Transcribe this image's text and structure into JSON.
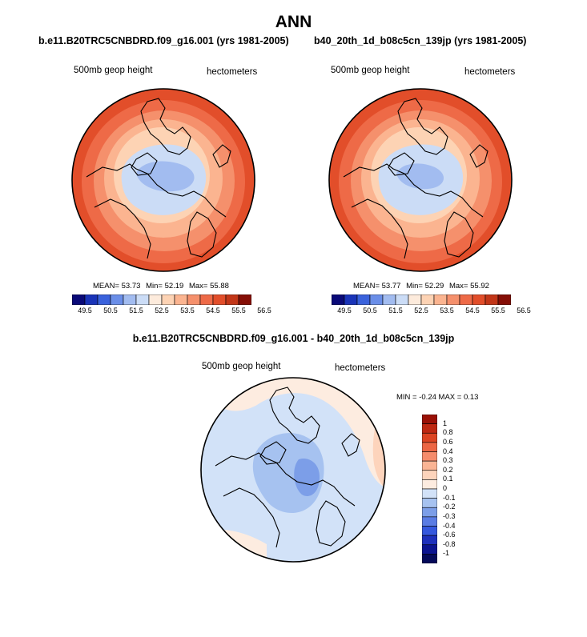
{
  "page": {
    "title": "ANN"
  },
  "panels": [
    {
      "case_title": "b.e11.B20TRC5CNBDRD.f09_g16.001 (yrs 1981-2005)",
      "variable_label": "500mb geop height",
      "units_label": "hectometers",
      "mean_label": "MEAN=",
      "mean": "53.73",
      "min_label": "Min=",
      "min": "52.19",
      "max_label": "Max=",
      "max": "55.88"
    },
    {
      "case_title": "b40_20th_1d_b08c5cn_139jp (yrs 1981-2005)",
      "variable_label": "500mb geop height",
      "units_label": "hectometers",
      "mean_label": "MEAN=",
      "mean": "53.77",
      "min_label": "Min=",
      "min": "52.29",
      "max_label": "Max=",
      "max": "55.92"
    }
  ],
  "difference": {
    "title": "b.e11.B20TRC5CNBDRD.f09_g16.001 - b40_20th_1d_b08c5cn_139jp",
    "variable_label": "500mb geop height",
    "units_label": "hectometers",
    "stats_label": "MIN =  -0.24 MAX =  0.13"
  },
  "chart_data": [
    {
      "type": "heatmap",
      "projection": "polar-stereographic-north",
      "title": "b.e11.B20TRC5CNBDRD.f09_g16.001 (yrs 1981-2005)",
      "variable": "500mb geop height",
      "units": "hectometers",
      "stats": {
        "mean": 53.73,
        "min": 52.19,
        "max": 55.88
      },
      "colorbar": {
        "orientation": "horizontal",
        "levels": [
          "49.5",
          "50.5",
          "51.5",
          "52.5",
          "53.5",
          "54.5",
          "55.5",
          "56.5"
        ],
        "colors": [
          "#0a0a78",
          "#1a34b8",
          "#3a62dc",
          "#6a8ee8",
          "#a2bcf0",
          "#cbdcf6",
          "#fdebdc",
          "#fdd3b4",
          "#fbb490",
          "#f5906c",
          "#ee6a47",
          "#e24e2a",
          "#c23618",
          "#850e06"
        ]
      }
    },
    {
      "type": "heatmap",
      "projection": "polar-stereographic-north",
      "title": "b40_20th_1d_b08c5cn_139jp (yrs 1981-2005)",
      "variable": "500mb geop height",
      "units": "hectometers",
      "stats": {
        "mean": 53.77,
        "min": 52.29,
        "max": 55.92
      },
      "colorbar": {
        "orientation": "horizontal",
        "levels": [
          "49.5",
          "50.5",
          "51.5",
          "52.5",
          "53.5",
          "54.5",
          "55.5",
          "56.5"
        ],
        "colors": [
          "#0a0a78",
          "#1a34b8",
          "#3a62dc",
          "#6a8ee8",
          "#a2bcf0",
          "#cbdcf6",
          "#fdebdc",
          "#fdd3b4",
          "#fbb490",
          "#f5906c",
          "#ee6a47",
          "#e24e2a",
          "#c23618",
          "#850e06"
        ]
      }
    },
    {
      "type": "heatmap",
      "projection": "polar-stereographic-north",
      "title": "b.e11.B20TRC5CNBDRD.f09_g16.001 - b40_20th_1d_b08c5cn_139jp",
      "variable": "500mb geop height",
      "units": "hectometers",
      "stats": {
        "min": -0.24,
        "max": 0.13
      },
      "colorbar": {
        "orientation": "vertical",
        "levels": [
          "1",
          "0.8",
          "0.6",
          "0.4",
          "0.3",
          "0.2",
          "0.1",
          "0",
          "-0.1",
          "-0.2",
          "-0.3",
          "-0.4",
          "-0.6",
          "-0.8",
          "-1"
        ],
        "colors": [
          "#9a1006",
          "#be2812",
          "#dc4422",
          "#ec6644",
          "#f58c6c",
          "#fab494",
          "#fdd4bc",
          "#fdece0",
          "#d2e2f8",
          "#a6c2f0",
          "#7c9ee8",
          "#5a7ce4",
          "#3558de",
          "#1e30bc",
          "#0c1490",
          "#050a5a"
        ]
      }
    }
  ]
}
